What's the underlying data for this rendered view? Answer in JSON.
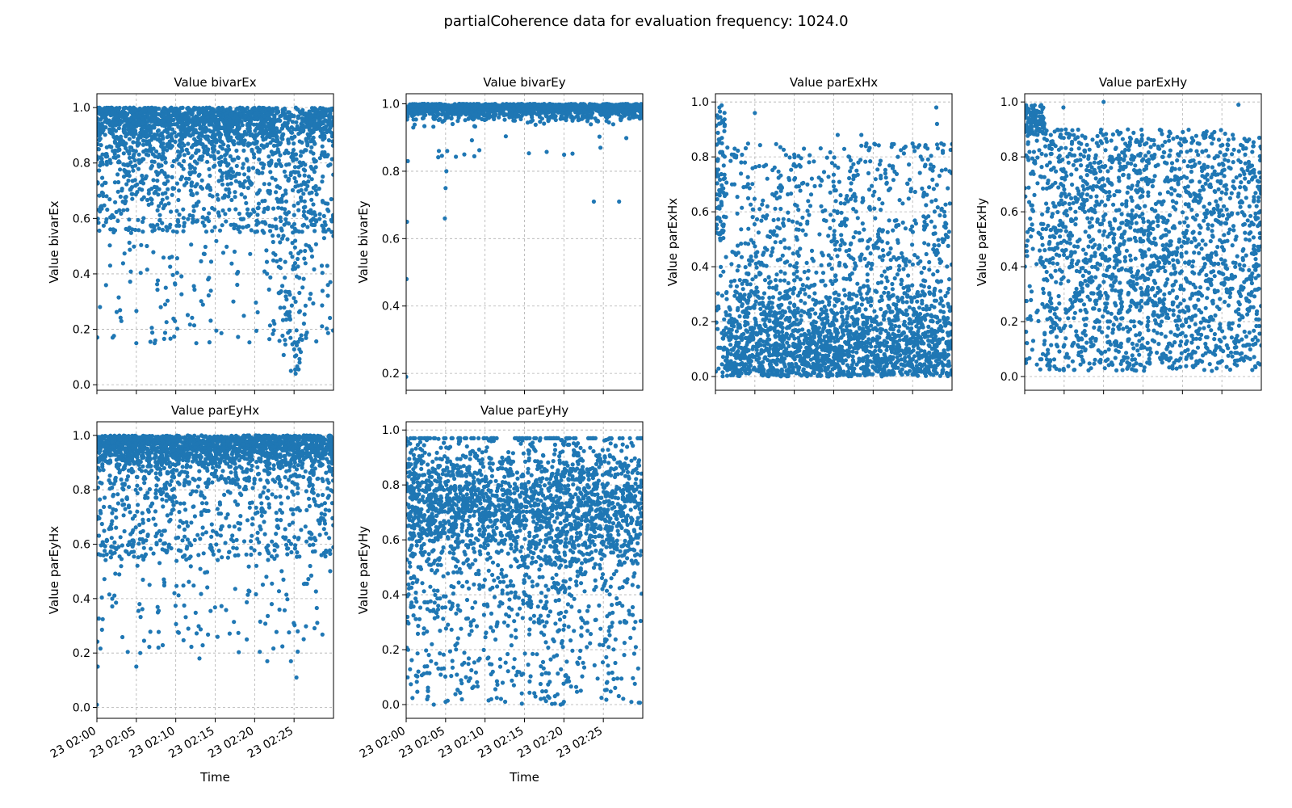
{
  "figure": {
    "suptitle": "partialCoherence data for evaluation frequency: 1024.0"
  },
  "chart_data": [
    {
      "type": "scatter",
      "title": "Value bivarEx",
      "xlabel": "",
      "ylabel": "Value bivarEx",
      "x_range": [
        "23 02:00",
        "23 02:30"
      ],
      "ylim": [
        -0.02,
        1.05
      ],
      "yticks": [
        0.0,
        0.2,
        0.4,
        0.6,
        0.8,
        1.0
      ],
      "xticks": [
        "23 02:00",
        "23 02:05",
        "23 02:10",
        "23 02:15",
        "23 02:20",
        "23 02:25"
      ],
      "show_xticklabels": false,
      "grid": true,
      "color": "#1f77b4",
      "distribution": {
        "dense_band": [
          0.78,
          1.0
        ],
        "scattered_min": 0.03
      },
      "sample_points": [
        [
          0.1,
          0.98
        ],
        [
          2.0,
          0.17
        ],
        [
          3.1,
          0.23
        ],
        [
          5.0,
          0.15
        ],
        [
          7.4,
          0.16
        ],
        [
          8.1,
          0.28
        ],
        [
          9.9,
          0.23
        ],
        [
          12.6,
          0.15
        ],
        [
          14.1,
          0.38
        ],
        [
          17.3,
          0.3
        ],
        [
          22.5,
          0.22
        ],
        [
          24.6,
          0.05
        ],
        [
          25.2,
          0.04
        ],
        [
          25.7,
          0.08
        ],
        [
          29.6,
          0.37
        ]
      ]
    },
    {
      "type": "scatter",
      "title": "Value bivarEy",
      "xlabel": "",
      "ylabel": "Value bivarEy",
      "x_range": [
        "23 02:00",
        "23 02:30"
      ],
      "ylim": [
        0.15,
        1.03
      ],
      "yticks": [
        0.2,
        0.4,
        0.6,
        0.8,
        1.0
      ],
      "xticks": [
        "23 02:00",
        "23 02:05",
        "23 02:10",
        "23 02:15",
        "23 02:20",
        "23 02:25"
      ],
      "show_xticklabels": false,
      "grid": true,
      "color": "#1f77b4",
      "distribution": {
        "dense_band": [
          0.93,
          1.0
        ],
        "scattered_min": 0.19
      },
      "sample_points": [
        [
          0.0,
          0.19
        ],
        [
          0.05,
          0.48
        ],
        [
          0.1,
          0.65
        ],
        [
          0.2,
          0.83
        ],
        [
          4.9,
          0.66
        ],
        [
          5.0,
          0.75
        ],
        [
          5.1,
          0.8
        ],
        [
          5.2,
          0.86
        ],
        [
          23.8,
          0.71
        ],
        [
          27.0,
          0.71
        ]
      ]
    },
    {
      "type": "scatter",
      "title": "Value parExHx",
      "xlabel": "",
      "ylabel": "Value parExHx",
      "x_range": [
        "23 02:00",
        "23 02:30"
      ],
      "ylim": [
        -0.05,
        1.03
      ],
      "yticks": [
        0.0,
        0.2,
        0.4,
        0.6,
        0.8,
        1.0
      ],
      "xticks": [
        "23 02:00",
        "23 02:05",
        "23 02:10",
        "23 02:15",
        "23 02:20",
        "23 02:25"
      ],
      "show_xticklabels": false,
      "grid": true,
      "color": "#1f77b4",
      "distribution": {
        "dense_band": [
          0.0,
          0.45
        ],
        "scattered_max": 1.0
      },
      "sample_points": [
        [
          0.5,
          0.98
        ],
        [
          5.0,
          0.96
        ],
        [
          15.5,
          0.88
        ],
        [
          18.5,
          0.88
        ],
        [
          28.0,
          0.98
        ],
        [
          28.1,
          0.92
        ]
      ]
    },
    {
      "type": "scatter",
      "title": "Value parExHy",
      "xlabel": "",
      "ylabel": "Value parExHy",
      "x_range": [
        "23 02:00",
        "23 02:30"
      ],
      "ylim": [
        -0.05,
        1.03
      ],
      "yticks": [
        0.0,
        0.2,
        0.4,
        0.6,
        0.8,
        1.0
      ],
      "xticks": [
        "23 02:00",
        "23 02:05",
        "23 02:10",
        "23 02:15",
        "23 02:20",
        "23 02:25"
      ],
      "show_xticklabels": false,
      "grid": true,
      "color": "#1f77b4",
      "distribution": {
        "dense_band": [
          0.0,
          0.9
        ],
        "scattered_max": 1.0
      },
      "sample_points": [
        [
          0.5,
          0.97
        ],
        [
          2.0,
          0.93
        ],
        [
          4.9,
          0.98
        ],
        [
          10.0,
          1.0
        ],
        [
          27.1,
          0.99
        ]
      ]
    },
    {
      "type": "scatter",
      "title": "Value parEyHx",
      "xlabel": "Time",
      "ylabel": "Value parEyHx",
      "x_range": [
        "23 02:00",
        "23 02:30"
      ],
      "ylim": [
        -0.04,
        1.05
      ],
      "yticks": [
        0.0,
        0.2,
        0.4,
        0.6,
        0.8,
        1.0
      ],
      "xticks": [
        "23 02:00",
        "23 02:05",
        "23 02:10",
        "23 02:15",
        "23 02:20",
        "23 02:25"
      ],
      "show_xticklabels": true,
      "grid": true,
      "color": "#1f77b4",
      "distribution": {
        "dense_band": [
          0.8,
          1.0
        ],
        "scattered_min": 0.01
      },
      "sample_points": [
        [
          0.0,
          0.01
        ],
        [
          0.1,
          0.15
        ],
        [
          5.0,
          0.15
        ],
        [
          5.5,
          0.2
        ],
        [
          7.8,
          0.22
        ],
        [
          13.0,
          0.18
        ],
        [
          19.0,
          0.25
        ],
        [
          21.6,
          0.17
        ],
        [
          24.6,
          0.17
        ],
        [
          25.3,
          0.11
        ]
      ]
    },
    {
      "type": "scatter",
      "title": "Value parEyHy",
      "xlabel": "Time",
      "ylabel": "Value parEyHy",
      "x_range": [
        "23 02:00",
        "23 02:30"
      ],
      "ylim": [
        -0.05,
        1.03
      ],
      "yticks": [
        0.0,
        0.2,
        0.4,
        0.6,
        0.8,
        1.0
      ],
      "xticks": [
        "23 02:00",
        "23 02:05",
        "23 02:10",
        "23 02:15",
        "23 02:20",
        "23 02:25"
      ],
      "show_xticklabels": true,
      "grid": true,
      "color": "#1f77b4",
      "distribution": {
        "dense_band": [
          0.35,
          0.95
        ],
        "scattered_min": 0.0
      },
      "sample_points": [
        [
          0.5,
          0.95
        ],
        [
          3.5,
          0.0
        ],
        [
          5.0,
          0.01
        ],
        [
          19.6,
          0.0
        ],
        [
          20.0,
          0.01
        ],
        [
          24.0,
          0.97
        ]
      ]
    }
  ]
}
